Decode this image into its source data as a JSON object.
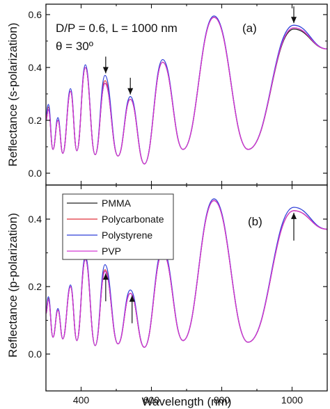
{
  "figure": {
    "xlabel": "Wavelength (nm)",
    "x_ticks": [
      "400",
      "600",
      "800",
      "1000"
    ],
    "legend": [
      "PMMA",
      "Polycarbonate",
      "Polystyrene",
      "PVP"
    ],
    "colors": {
      "PMMA": "#222222",
      "Polycarbonate": "#e0303a",
      "Polystyrene": "#2f3fd8",
      "PVP": "#d437d4"
    }
  },
  "chart_data": [
    {
      "type": "line",
      "panel_label": "(a)",
      "xlabel": "Wavelength (nm)",
      "ylabel": "Reflectance (s-polarization)",
      "xlim": [
        300,
        1100
      ],
      "ylim": [
        -0.05,
        0.63
      ],
      "y_ticks": [
        "0.0",
        "0.2",
        "0.4",
        "0.6"
      ],
      "annotations": [
        "D/P = 0.6, L = 1000 nm",
        "θ = 30º"
      ],
      "arrows_at_nm": [
        470,
        540,
        1005
      ],
      "series_names": [
        "PMMA",
        "Polycarbonate",
        "Polystyrene",
        "PVP"
      ],
      "peaks": [
        {
          "x": 307,
          "PMMA": 0.24,
          "Polycarbonate": 0.25,
          "Polystyrene": 0.26,
          "PVP": 0.24
        },
        {
          "x": 334,
          "PMMA": 0.2,
          "Polycarbonate": 0.2,
          "Polystyrene": 0.21,
          "PVP": 0.2
        },
        {
          "x": 370,
          "PMMA": 0.31,
          "Polycarbonate": 0.31,
          "Polystyrene": 0.32,
          "PVP": 0.31
        },
        {
          "x": 412,
          "PMMA": 0.4,
          "Polycarbonate": 0.4,
          "Polystyrene": 0.41,
          "PVP": 0.4
        },
        {
          "x": 468,
          "PMMA": 0.34,
          "Polycarbonate": 0.35,
          "Polystyrene": 0.37,
          "PVP": 0.34
        },
        {
          "x": 540,
          "PMMA": 0.28,
          "Polycarbonate": 0.28,
          "Polystyrene": 0.29,
          "PVP": 0.28
        },
        {
          "x": 632,
          "PMMA": 0.42,
          "Polycarbonate": 0.42,
          "Polystyrene": 0.43,
          "PVP": 0.42
        },
        {
          "x": 778,
          "PMMA": 0.59,
          "Polycarbonate": 0.59,
          "Polystyrene": 0.595,
          "PVP": 0.59
        },
        {
          "x": 1005,
          "PMMA": 0.545,
          "Polycarbonate": 0.55,
          "Polystyrene": 0.56,
          "PVP": 0.55
        }
      ],
      "troughs": [
        {
          "x": 320,
          "y": 0.09
        },
        {
          "x": 348,
          "y": 0.075
        },
        {
          "x": 388,
          "y": 0.085
        },
        {
          "x": 440,
          "y": 0.07
        },
        {
          "x": 505,
          "y": 0.065
        },
        {
          "x": 580,
          "y": 0.035
        },
        {
          "x": 690,
          "y": 0.09
        },
        {
          "x": 875,
          "y": 0.09
        }
      ],
      "end": {
        "x": 1100,
        "y": 0.47
      }
    },
    {
      "type": "line",
      "panel_label": "(b)",
      "xlabel": "Wavelength (nm)",
      "ylabel": "Reflectance (p-polarization)",
      "xlim": [
        300,
        1100
      ],
      "ylim": [
        -0.05,
        0.47
      ],
      "y_ticks": [
        "0.0",
        "0.2",
        "0.4"
      ],
      "arrows_at_nm": [
        470,
        545,
        1005
      ],
      "series_names": [
        "PMMA",
        "Polycarbonate",
        "Polystyrene",
        "PVP"
      ],
      "peaks": [
        {
          "x": 307,
          "PMMA": 0.16,
          "Polycarbonate": 0.165,
          "Polystyrene": 0.17,
          "PVP": 0.16
        },
        {
          "x": 334,
          "PMMA": 0.13,
          "Polycarbonate": 0.13,
          "Polystyrene": 0.135,
          "PVP": 0.13
        },
        {
          "x": 370,
          "PMMA": 0.2,
          "Polycarbonate": 0.2,
          "Polystyrene": 0.205,
          "PVP": 0.2
        },
        {
          "x": 412,
          "PMMA": 0.28,
          "Polycarbonate": 0.285,
          "Polystyrene": 0.29,
          "PVP": 0.28
        },
        {
          "x": 468,
          "PMMA": 0.245,
          "Polycarbonate": 0.25,
          "Polystyrene": 0.265,
          "PVP": 0.245
        },
        {
          "x": 540,
          "PMMA": 0.18,
          "Polycarbonate": 0.18,
          "Polystyrene": 0.19,
          "PVP": 0.18
        },
        {
          "x": 632,
          "PMMA": 0.3,
          "Polycarbonate": 0.3,
          "Polystyrene": 0.31,
          "PVP": 0.3
        },
        {
          "x": 778,
          "PMMA": 0.455,
          "Polycarbonate": 0.455,
          "Polystyrene": 0.46,
          "PVP": 0.455
        },
        {
          "x": 1005,
          "PMMA": 0.425,
          "Polycarbonate": 0.425,
          "Polystyrene": 0.435,
          "PVP": 0.425
        }
      ],
      "troughs": [
        {
          "x": 320,
          "y": 0.05
        },
        {
          "x": 348,
          "y": 0.045
        },
        {
          "x": 388,
          "y": 0.04
        },
        {
          "x": 440,
          "y": 0.025
        },
        {
          "x": 505,
          "y": 0.03
        },
        {
          "x": 580,
          "y": 0.02
        },
        {
          "x": 690,
          "y": 0.04
        },
        {
          "x": 875,
          "y": 0.035
        }
      ],
      "end": {
        "x": 1100,
        "y": 0.37
      }
    }
  ]
}
